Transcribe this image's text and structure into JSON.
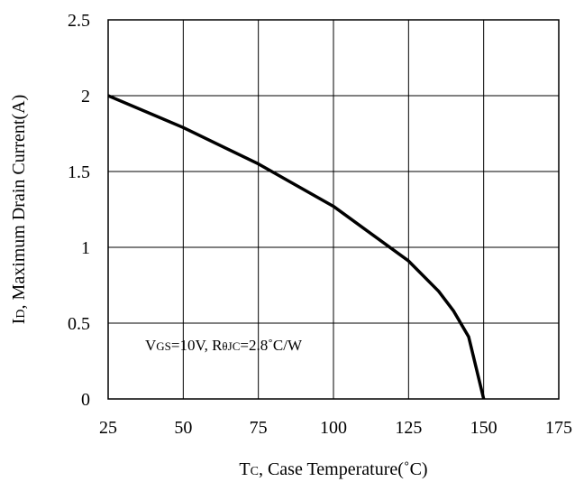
{
  "chart_data": {
    "type": "line",
    "xlabel": {
      "main1": "T",
      "sub": "C",
      "main2": ", Case Temperature(˚C)"
    },
    "ylabel": {
      "main1": "I",
      "sub": "D",
      "main2": ", Maximum Drain Current(A)"
    },
    "xlim": [
      25,
      175
    ],
    "ylim": [
      0,
      2.5
    ],
    "x_ticks": [
      "25",
      "50",
      "75",
      "100",
      "125",
      "150",
      "175"
    ],
    "y_ticks": [
      "0",
      "0.5",
      "1",
      "1.5",
      "2",
      "2.5"
    ],
    "grid": true,
    "annotation": {
      "v": "V",
      "gs": "GS",
      "mid": "=10V, R",
      "theta": "θJC",
      "tail": "=2.8˚C/W"
    },
    "series": [
      {
        "x": [
          25,
          50,
          75,
          100,
          125,
          135,
          140,
          145,
          150
        ],
        "y": [
          2.0,
          1.79,
          1.55,
          1.27,
          0.91,
          0.71,
          0.58,
          0.41,
          0.0
        ]
      }
    ]
  }
}
